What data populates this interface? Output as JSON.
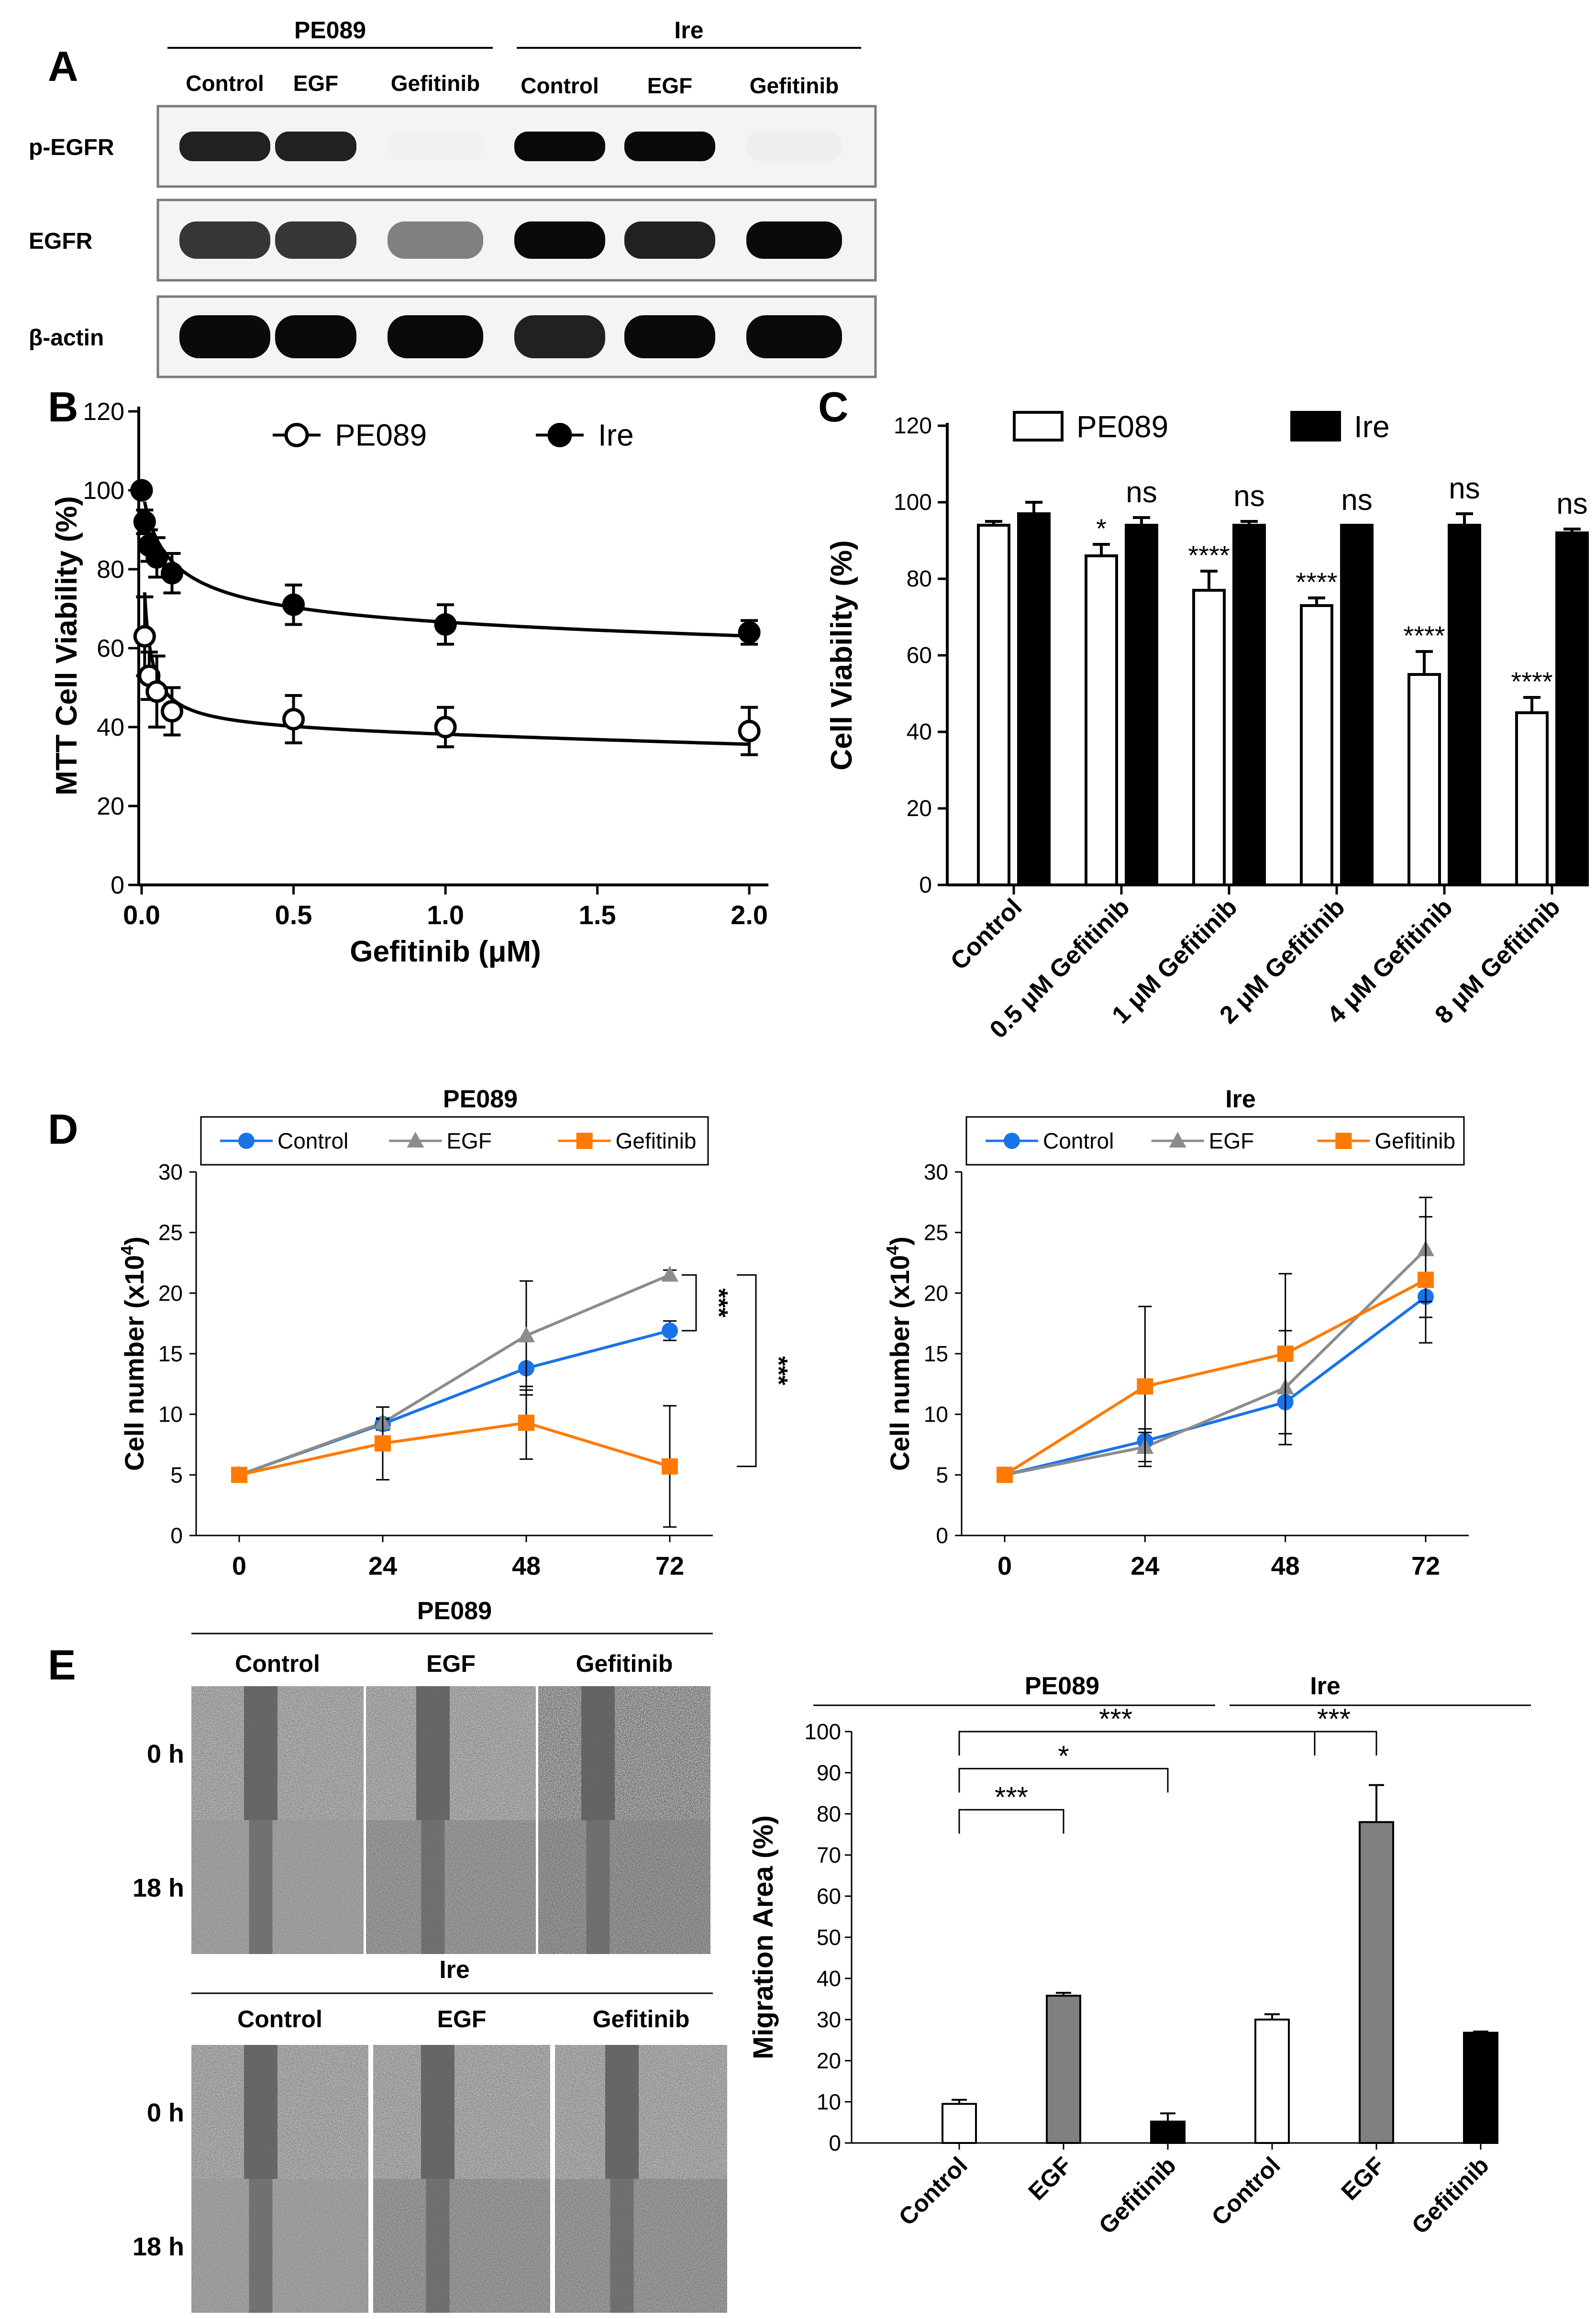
{
  "panel_letters": {
    "a": "A",
    "b": "B",
    "c": "C",
    "d": "D",
    "e": "E"
  },
  "colors": {
    "control": "#1a73e8",
    "egf": "#8c8c8c",
    "gefitinib": "#ff7a00",
    "black": "#000000",
    "white": "#ffffff",
    "grey_bar": "#808080"
  },
  "western_blot": {
    "cell_lines": [
      "PE089",
      "Ire"
    ],
    "lanes": [
      "Control",
      "EGF",
      "Gefitinib",
      "Control",
      "EGF",
      "Gefitinib"
    ],
    "rows": [
      {
        "label": "p-EGFR",
        "intensity": [
          0.95,
          0.95,
          0.04,
          1.0,
          1.0,
          0.12
        ]
      },
      {
        "label": "EGFR",
        "intensity": [
          0.9,
          0.9,
          0.7,
          1.0,
          0.95,
          1.0
        ]
      },
      {
        "label": "β-actin",
        "intensity": [
          1.0,
          1.0,
          1.0,
          0.95,
          1.0,
          1.0
        ]
      }
    ]
  },
  "chart_data": [
    {
      "id": "B",
      "type": "scatter",
      "xlabel": "Gefitinib (μM)",
      "ylabel": "MTT Cell Viability (%)",
      "xlim": [
        0,
        2.0
      ],
      "ylim": [
        0,
        120
      ],
      "xticks": [
        "0.0",
        "0.5",
        "1.0",
        "1.5",
        "2.0"
      ],
      "xtick_values": [
        0,
        0.5,
        1.0,
        1.5,
        2.0
      ],
      "yticks": [
        0,
        20,
        40,
        60,
        80,
        100,
        120
      ],
      "legend": [
        "PE089",
        "Ire"
      ],
      "series": [
        {
          "name": "PE089",
          "marker": "open-circle",
          "x": [
            0,
            0.01,
            0.025,
            0.05,
            0.1,
            0.5,
            1.0,
            2.0
          ],
          "y": [
            100,
            63,
            53,
            49,
            44,
            42,
            40,
            39
          ],
          "err": [
            0,
            10,
            6,
            9,
            6,
            6,
            5,
            6
          ],
          "fit": {
            "bottom": 35,
            "a": 7.31,
            "n": 0.302
          }
        },
        {
          "name": "Ire",
          "marker": "filled-circle",
          "x": [
            0,
            0.01,
            0.025,
            0.05,
            0.1,
            0.5,
            1.0,
            2.0
          ],
          "y": [
            100,
            92,
            86,
            83,
            79,
            71,
            66,
            64
          ],
          "err": [
            0,
            3,
            4,
            5,
            5,
            5,
            5,
            3
          ],
          "fit": {
            "bottom": 60,
            "a": 2.45,
            "n": 0.563
          }
        }
      ]
    },
    {
      "id": "C",
      "type": "bar",
      "ylabel": "Cell Viability (%)",
      "ylim": [
        0,
        120
      ],
      "yticks": [
        0,
        20,
        40,
        60,
        80,
        100,
        120
      ],
      "categories": [
        "Control",
        "0.5 μM Gefitinib",
        "1 μM Gefitinib",
        "2 μM Gefitinib",
        "4 μM Gefitinib",
        "8 μM Gefitinib"
      ],
      "legend": [
        "PE089",
        "Ire"
      ],
      "series": [
        {
          "name": "PE089",
          "fill": "white",
          "values": [
            94,
            86,
            77,
            73,
            55,
            45
          ],
          "err": [
            1,
            3,
            5,
            2,
            6,
            4
          ],
          "sig": [
            "",
            "*",
            "****",
            "****",
            "****",
            "****"
          ]
        },
        {
          "name": "Ire",
          "fill": "black",
          "values": [
            97,
            94,
            94,
            94,
            94,
            92
          ],
          "err": [
            3,
            2,
            1,
            0,
            3,
            1
          ],
          "sig": [
            "",
            "ns",
            "ns",
            "ns",
            "ns",
            "ns"
          ]
        }
      ]
    },
    {
      "id": "D-PE089",
      "type": "line",
      "title": "PE089",
      "ylabel": "Cell number (x10⁴)",
      "ylabel_main": "Cell number (x10",
      "ylabel_sup": "4",
      "ylabel_end": ")",
      "x": [
        0,
        24,
        48,
        72
      ],
      "xticks": [
        "0",
        "24",
        "48",
        "72"
      ],
      "ylim": [
        0,
        30
      ],
      "yticks": [
        0,
        5,
        10,
        15,
        20,
        25,
        30
      ],
      "series": [
        {
          "name": "Control",
          "marker": "circle",
          "values": [
            5,
            9.2,
            13.8,
            16.9
          ],
          "err": [
            0,
            0.5,
            2.2,
            0.8
          ]
        },
        {
          "name": "EGF",
          "marker": "triangle",
          "values": [
            5,
            9.3,
            16.5,
            21.5
          ],
          "err": [
            0,
            0.3,
            4.5,
            0.4
          ]
        },
        {
          "name": "Gefitinib",
          "marker": "square",
          "values": [
            5,
            7.6,
            9.3,
            5.7
          ],
          "err": [
            0,
            3.0,
            3.0,
            5.0
          ]
        }
      ],
      "annotations": [
        "***",
        "***"
      ]
    },
    {
      "id": "D-Ire",
      "type": "line",
      "title": "Ire",
      "ylabel": "Cell number (x10⁴)",
      "ylabel_main": "Cell number (x10",
      "ylabel_sup": "4",
      "ylabel_end": ")",
      "x": [
        0,
        24,
        48,
        72
      ],
      "xticks": [
        "0",
        "24",
        "48",
        "72"
      ],
      "ylim": [
        0,
        30
      ],
      "yticks": [
        0,
        5,
        10,
        15,
        20,
        25,
        30
      ],
      "series": [
        {
          "name": "Control",
          "marker": "circle",
          "values": [
            5,
            7.8,
            11,
            19.7
          ],
          "err": [
            0,
            1.0,
            3.5,
            1.7
          ]
        },
        {
          "name": "EGF",
          "marker": "triangle",
          "values": [
            5,
            7.3,
            12.2,
            23.6
          ],
          "err": [
            0,
            1.2,
            4.7,
            4.3
          ]
        },
        {
          "name": "Gefitinib",
          "marker": "square",
          "values": [
            5,
            12.3,
            15,
            21.1
          ],
          "err": [
            0,
            6.6,
            6.6,
            5.2
          ]
        }
      ]
    },
    {
      "id": "E",
      "type": "bar",
      "ylabel": "Migration Area (%)",
      "ylim": [
        0,
        100
      ],
      "yticks": [
        0,
        10,
        20,
        30,
        40,
        50,
        60,
        70,
        80,
        90,
        100
      ],
      "groups": [
        "PE089",
        "Ire"
      ],
      "categories": [
        "Control",
        "EGF",
        "Gefitinib",
        "Control",
        "EGF",
        "Gefitinib"
      ],
      "values": [
        9.5,
        35.8,
        5.2,
        30,
        78,
        26.8
      ],
      "err": [
        1.0,
        0.7,
        2.0,
        1.3,
        9.0,
        0.3
      ],
      "fills": [
        "white",
        "grey",
        "black",
        "white",
        "grey",
        "black"
      ],
      "annotations": [
        "***",
        "*",
        "***",
        "***"
      ]
    }
  ],
  "scratch_assay": {
    "cell_lines": [
      "PE089",
      "Ire"
    ],
    "conditions": [
      "Control",
      "EGF",
      "Gefitinib"
    ],
    "timepoints": [
      "0 h",
      "18 h"
    ]
  }
}
